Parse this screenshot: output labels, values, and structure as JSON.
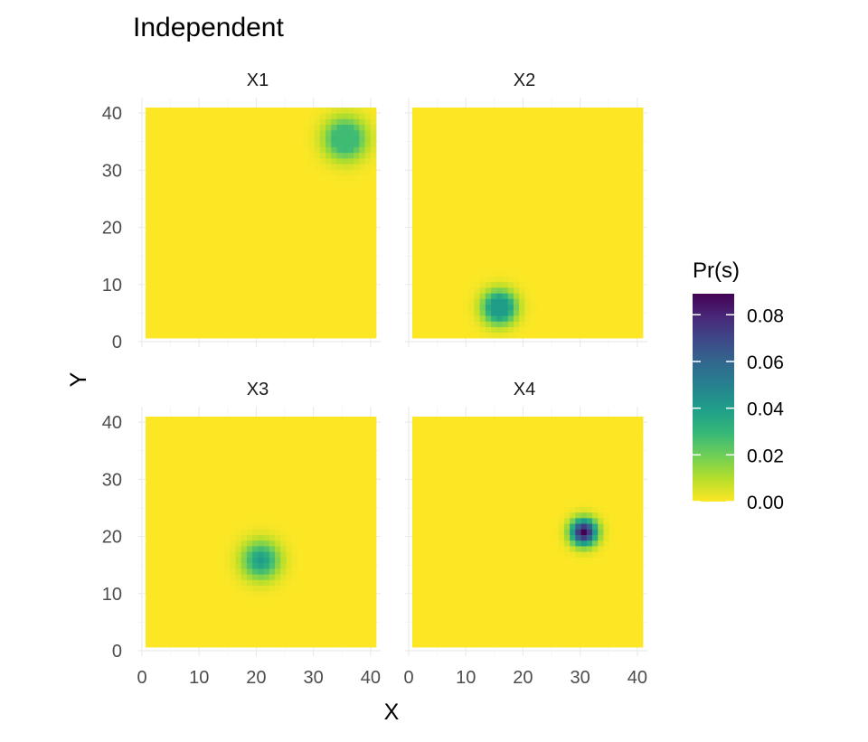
{
  "title": "Independent",
  "xlabel": "X",
  "ylabel": "Y",
  "legend": {
    "title": "Pr(s)",
    "placement": "right",
    "ticks": [
      "0.00",
      "0.02",
      "0.04",
      "0.06",
      "0.08"
    ],
    "tick_values": [
      0,
      0.02,
      0.04,
      0.06,
      0.08
    ],
    "max": 0.089,
    "palette": [
      "#fde725",
      "#b5de2b",
      "#6ece58",
      "#35b779",
      "#1f9e89",
      "#26828e",
      "#31688e",
      "#3e4989",
      "#482878",
      "#440154"
    ]
  },
  "chart_data": {
    "type": "heatmap",
    "layout": "facet-grid-2x2",
    "x_ticks": [
      "0",
      "10",
      "20",
      "30",
      "40"
    ],
    "y_ticks": [
      "0",
      "10",
      "20",
      "30",
      "40"
    ],
    "xlim": [
      0,
      40
    ],
    "ylim": [
      0,
      40
    ],
    "grid_resolution": 41,
    "grid": true,
    "panels": [
      {
        "name": "X1",
        "center": [
          35,
          35
        ],
        "sigma": 2.5,
        "peak": 0.028,
        "flat": true
      },
      {
        "name": "X2",
        "center": [
          15,
          5
        ],
        "sigma": 2.0,
        "peak": 0.04,
        "flat": true
      },
      {
        "name": "X3",
        "center": [
          20,
          15
        ],
        "sigma": 2.3,
        "peak": 0.04,
        "flat": false
      },
      {
        "name": "X4",
        "center": [
          30,
          20
        ],
        "sigma": 1.6,
        "peak": 0.089,
        "flat": false
      }
    ]
  }
}
